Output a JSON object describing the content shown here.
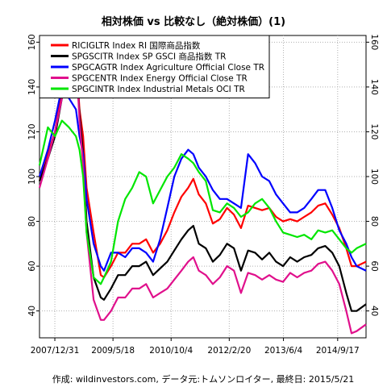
{
  "chart_data": {
    "type": "line",
    "title": "相対株価 vs 比較なし（絶対株価）(1)",
    "caption": "作成: wildinvestors.com, データ元:トムソンロイター, 最終日: 2015/5/21",
    "x_tick_labels": [
      "2007/12/31",
      "2009/5/18",
      "2010/10/4",
      "2012/2/20",
      "2013/6/4",
      "2014/9/17"
    ],
    "x_tick_dates": [
      "2007-12-31",
      "2009-05-18",
      "2010-10-04",
      "2012-02-20",
      "2013-06-04",
      "2014-09-17"
    ],
    "x_range": [
      "2007-08-20",
      "2015-05-21"
    ],
    "ylim": [
      28,
      163
    ],
    "y_ticks": [
      40,
      60,
      80,
      100,
      120,
      140,
      160
    ],
    "grid": true,
    "legend_position": "top-left",
    "series": [
      {
        "name": "RICIGLTR Index RI 国際商品指数",
        "color": "#ff0000",
        "x": [
          "2007-08-20",
          "2007-11-01",
          "2008-01-01",
          "2008-03-01",
          "2008-05-01",
          "2008-07-01",
          "2008-08-01",
          "2008-09-01",
          "2008-10-01",
          "2008-12-01",
          "2009-02-01",
          "2009-03-01",
          "2009-05-01",
          "2009-07-01",
          "2009-09-01",
          "2009-11-01",
          "2010-01-01",
          "2010-03-01",
          "2010-05-01",
          "2010-07-01",
          "2010-09-01",
          "2010-11-01",
          "2011-01-01",
          "2011-03-01",
          "2011-04-15",
          "2011-06-01",
          "2011-08-01",
          "2011-10-01",
          "2011-12-01",
          "2012-02-01",
          "2012-04-01",
          "2012-06-01",
          "2012-08-01",
          "2012-10-01",
          "2012-12-01",
          "2013-02-01",
          "2013-04-01",
          "2013-06-01",
          "2013-08-01",
          "2013-10-01",
          "2013-12-01",
          "2014-02-01",
          "2014-04-01",
          "2014-06-01",
          "2014-08-01",
          "2014-10-01",
          "2014-12-01",
          "2015-01-15",
          "2015-03-01",
          "2015-05-21"
        ],
        "values": [
          98,
          110,
          120,
          138,
          150,
          155,
          130,
          118,
          95,
          75,
          56,
          55,
          60,
          66,
          66,
          70,
          70,
          72,
          66,
          70,
          76,
          84,
          91,
          95,
          99,
          92,
          88,
          79,
          81,
          86,
          83,
          77,
          87,
          86,
          85,
          86,
          82,
          80,
          81,
          80,
          82,
          84,
          87,
          88,
          83,
          77,
          68,
          60,
          60,
          62
        ]
      },
      {
        "name": "SPGSCITR Index SP GSCI 商品指数 TR",
        "color": "#000000",
        "x": [
          "2007-08-20",
          "2007-11-01",
          "2008-01-01",
          "2008-03-01",
          "2008-05-01",
          "2008-07-01",
          "2008-08-01",
          "2008-09-01",
          "2008-10-01",
          "2008-12-01",
          "2009-02-01",
          "2009-03-01",
          "2009-05-01",
          "2009-07-01",
          "2009-09-01",
          "2009-11-01",
          "2010-01-01",
          "2010-03-01",
          "2010-05-01",
          "2010-07-01",
          "2010-09-01",
          "2010-11-01",
          "2011-01-01",
          "2011-03-01",
          "2011-04-15",
          "2011-06-01",
          "2011-08-01",
          "2011-10-01",
          "2011-12-01",
          "2012-02-01",
          "2012-04-01",
          "2012-06-01",
          "2012-08-01",
          "2012-10-01",
          "2012-12-01",
          "2013-02-01",
          "2013-04-01",
          "2013-06-01",
          "2013-08-01",
          "2013-10-01",
          "2013-12-01",
          "2014-02-01",
          "2014-04-01",
          "2014-06-01",
          "2014-08-01",
          "2014-10-01",
          "2014-12-01",
          "2015-01-15",
          "2015-03-01",
          "2015-05-21"
        ],
        "values": [
          98,
          108,
          118,
          135,
          148,
          152,
          128,
          110,
          80,
          55,
          46,
          45,
          50,
          56,
          56,
          60,
          60,
          62,
          56,
          59,
          62,
          67,
          72,
          76,
          78,
          70,
          68,
          62,
          65,
          70,
          68,
          58,
          67,
          66,
          63,
          66,
          62,
          60,
          64,
          62,
          64,
          65,
          68,
          69,
          66,
          60,
          48,
          40,
          40,
          43
        ]
      },
      {
        "name": "SPGCAGTR Index Agriculture Official Close TR",
        "color": "#0000ff",
        "x": [
          "2007-08-20",
          "2007-11-01",
          "2008-01-01",
          "2008-03-01",
          "2008-05-01",
          "2008-07-01",
          "2008-08-01",
          "2008-09-01",
          "2008-10-01",
          "2008-12-01",
          "2009-02-01",
          "2009-03-01",
          "2009-05-01",
          "2009-07-01",
          "2009-09-01",
          "2009-11-01",
          "2010-01-01",
          "2010-03-01",
          "2010-05-01",
          "2010-07-01",
          "2010-09-01",
          "2010-11-01",
          "2011-01-01",
          "2011-03-01",
          "2011-04-15",
          "2011-06-01",
          "2011-08-01",
          "2011-10-01",
          "2011-12-01",
          "2012-02-01",
          "2012-04-01",
          "2012-06-01",
          "2012-08-01",
          "2012-10-01",
          "2012-12-01",
          "2013-02-01",
          "2013-04-01",
          "2013-06-01",
          "2013-08-01",
          "2013-10-01",
          "2013-12-01",
          "2014-02-01",
          "2014-04-01",
          "2014-06-01",
          "2014-08-01",
          "2014-10-01",
          "2014-12-01",
          "2015-01-15",
          "2015-03-01",
          "2015-05-21"
        ],
        "values": [
          100,
          112,
          125,
          140,
          135,
          130,
          118,
          110,
          90,
          70,
          60,
          58,
          66,
          66,
          64,
          68,
          68,
          66,
          62,
          72,
          86,
          100,
          108,
          112,
          110,
          104,
          100,
          94,
          90,
          90,
          88,
          86,
          110,
          106,
          100,
          98,
          92,
          88,
          84,
          84,
          86,
          90,
          94,
          94,
          86,
          76,
          70,
          64,
          60,
          58
        ]
      },
      {
        "name": "SPGCENTR Index Energy Official Close TR",
        "color": "#e0108c",
        "x": [
          "2007-08-20",
          "2007-11-01",
          "2008-01-01",
          "2008-03-01",
          "2008-05-01",
          "2008-07-01",
          "2008-08-01",
          "2008-09-01",
          "2008-10-01",
          "2008-12-01",
          "2009-02-01",
          "2009-03-01",
          "2009-05-01",
          "2009-07-01",
          "2009-09-01",
          "2009-11-01",
          "2010-01-01",
          "2010-03-01",
          "2010-05-01",
          "2010-07-01",
          "2010-09-01",
          "2010-11-01",
          "2011-01-01",
          "2011-03-01",
          "2011-04-15",
          "2011-06-01",
          "2011-08-01",
          "2011-10-01",
          "2011-12-01",
          "2012-02-01",
          "2012-04-01",
          "2012-06-01",
          "2012-08-01",
          "2012-10-01",
          "2012-12-01",
          "2013-02-01",
          "2013-04-01",
          "2013-06-01",
          "2013-08-01",
          "2013-10-01",
          "2013-12-01",
          "2014-02-01",
          "2014-04-01",
          "2014-06-01",
          "2014-08-01",
          "2014-10-01",
          "2014-12-01",
          "2015-01-15",
          "2015-03-01",
          "2015-05-21"
        ],
        "values": [
          95,
          108,
          120,
          135,
          150,
          155,
          125,
          105,
          75,
          45,
          36,
          36,
          40,
          46,
          46,
          50,
          50,
          52,
          46,
          48,
          50,
          54,
          58,
          62,
          64,
          58,
          56,
          52,
          55,
          60,
          58,
          48,
          57,
          56,
          54,
          56,
          54,
          53,
          57,
          55,
          57,
          58,
          61,
          62,
          58,
          52,
          40,
          30,
          31,
          34
        ]
      },
      {
        "name": "SPGCINTR Index Industrial Metals OCI TR",
        "color": "#00e600",
        "x": [
          "2007-08-20",
          "2007-11-01",
          "2008-01-01",
          "2008-03-01",
          "2008-05-01",
          "2008-07-01",
          "2008-08-01",
          "2008-09-01",
          "2008-10-01",
          "2008-12-01",
          "2009-02-01",
          "2009-03-01",
          "2009-05-01",
          "2009-07-01",
          "2009-09-01",
          "2009-11-01",
          "2010-01-01",
          "2010-03-01",
          "2010-05-01",
          "2010-07-01",
          "2010-09-01",
          "2010-11-01",
          "2011-01-01",
          "2011-03-01",
          "2011-04-15",
          "2011-06-01",
          "2011-08-01",
          "2011-10-01",
          "2011-12-01",
          "2012-02-01",
          "2012-04-01",
          "2012-06-01",
          "2012-08-01",
          "2012-10-01",
          "2012-12-01",
          "2013-02-01",
          "2013-04-01",
          "2013-06-01",
          "2013-08-01",
          "2013-10-01",
          "2013-12-01",
          "2014-02-01",
          "2014-04-01",
          "2014-06-01",
          "2014-08-01",
          "2014-10-01",
          "2014-12-01",
          "2015-01-15",
          "2015-03-01",
          "2015-05-21"
        ],
        "values": [
          105,
          122,
          118,
          125,
          122,
          118,
          112,
          100,
          75,
          55,
          52,
          55,
          62,
          80,
          90,
          95,
          102,
          100,
          88,
          94,
          100,
          104,
          110,
          108,
          106,
          102,
          98,
          85,
          84,
          88,
          86,
          82,
          84,
          88,
          90,
          86,
          80,
          75,
          74,
          73,
          74,
          72,
          76,
          75,
          76,
          72,
          68,
          66,
          68,
          70
        ]
      }
    ]
  }
}
